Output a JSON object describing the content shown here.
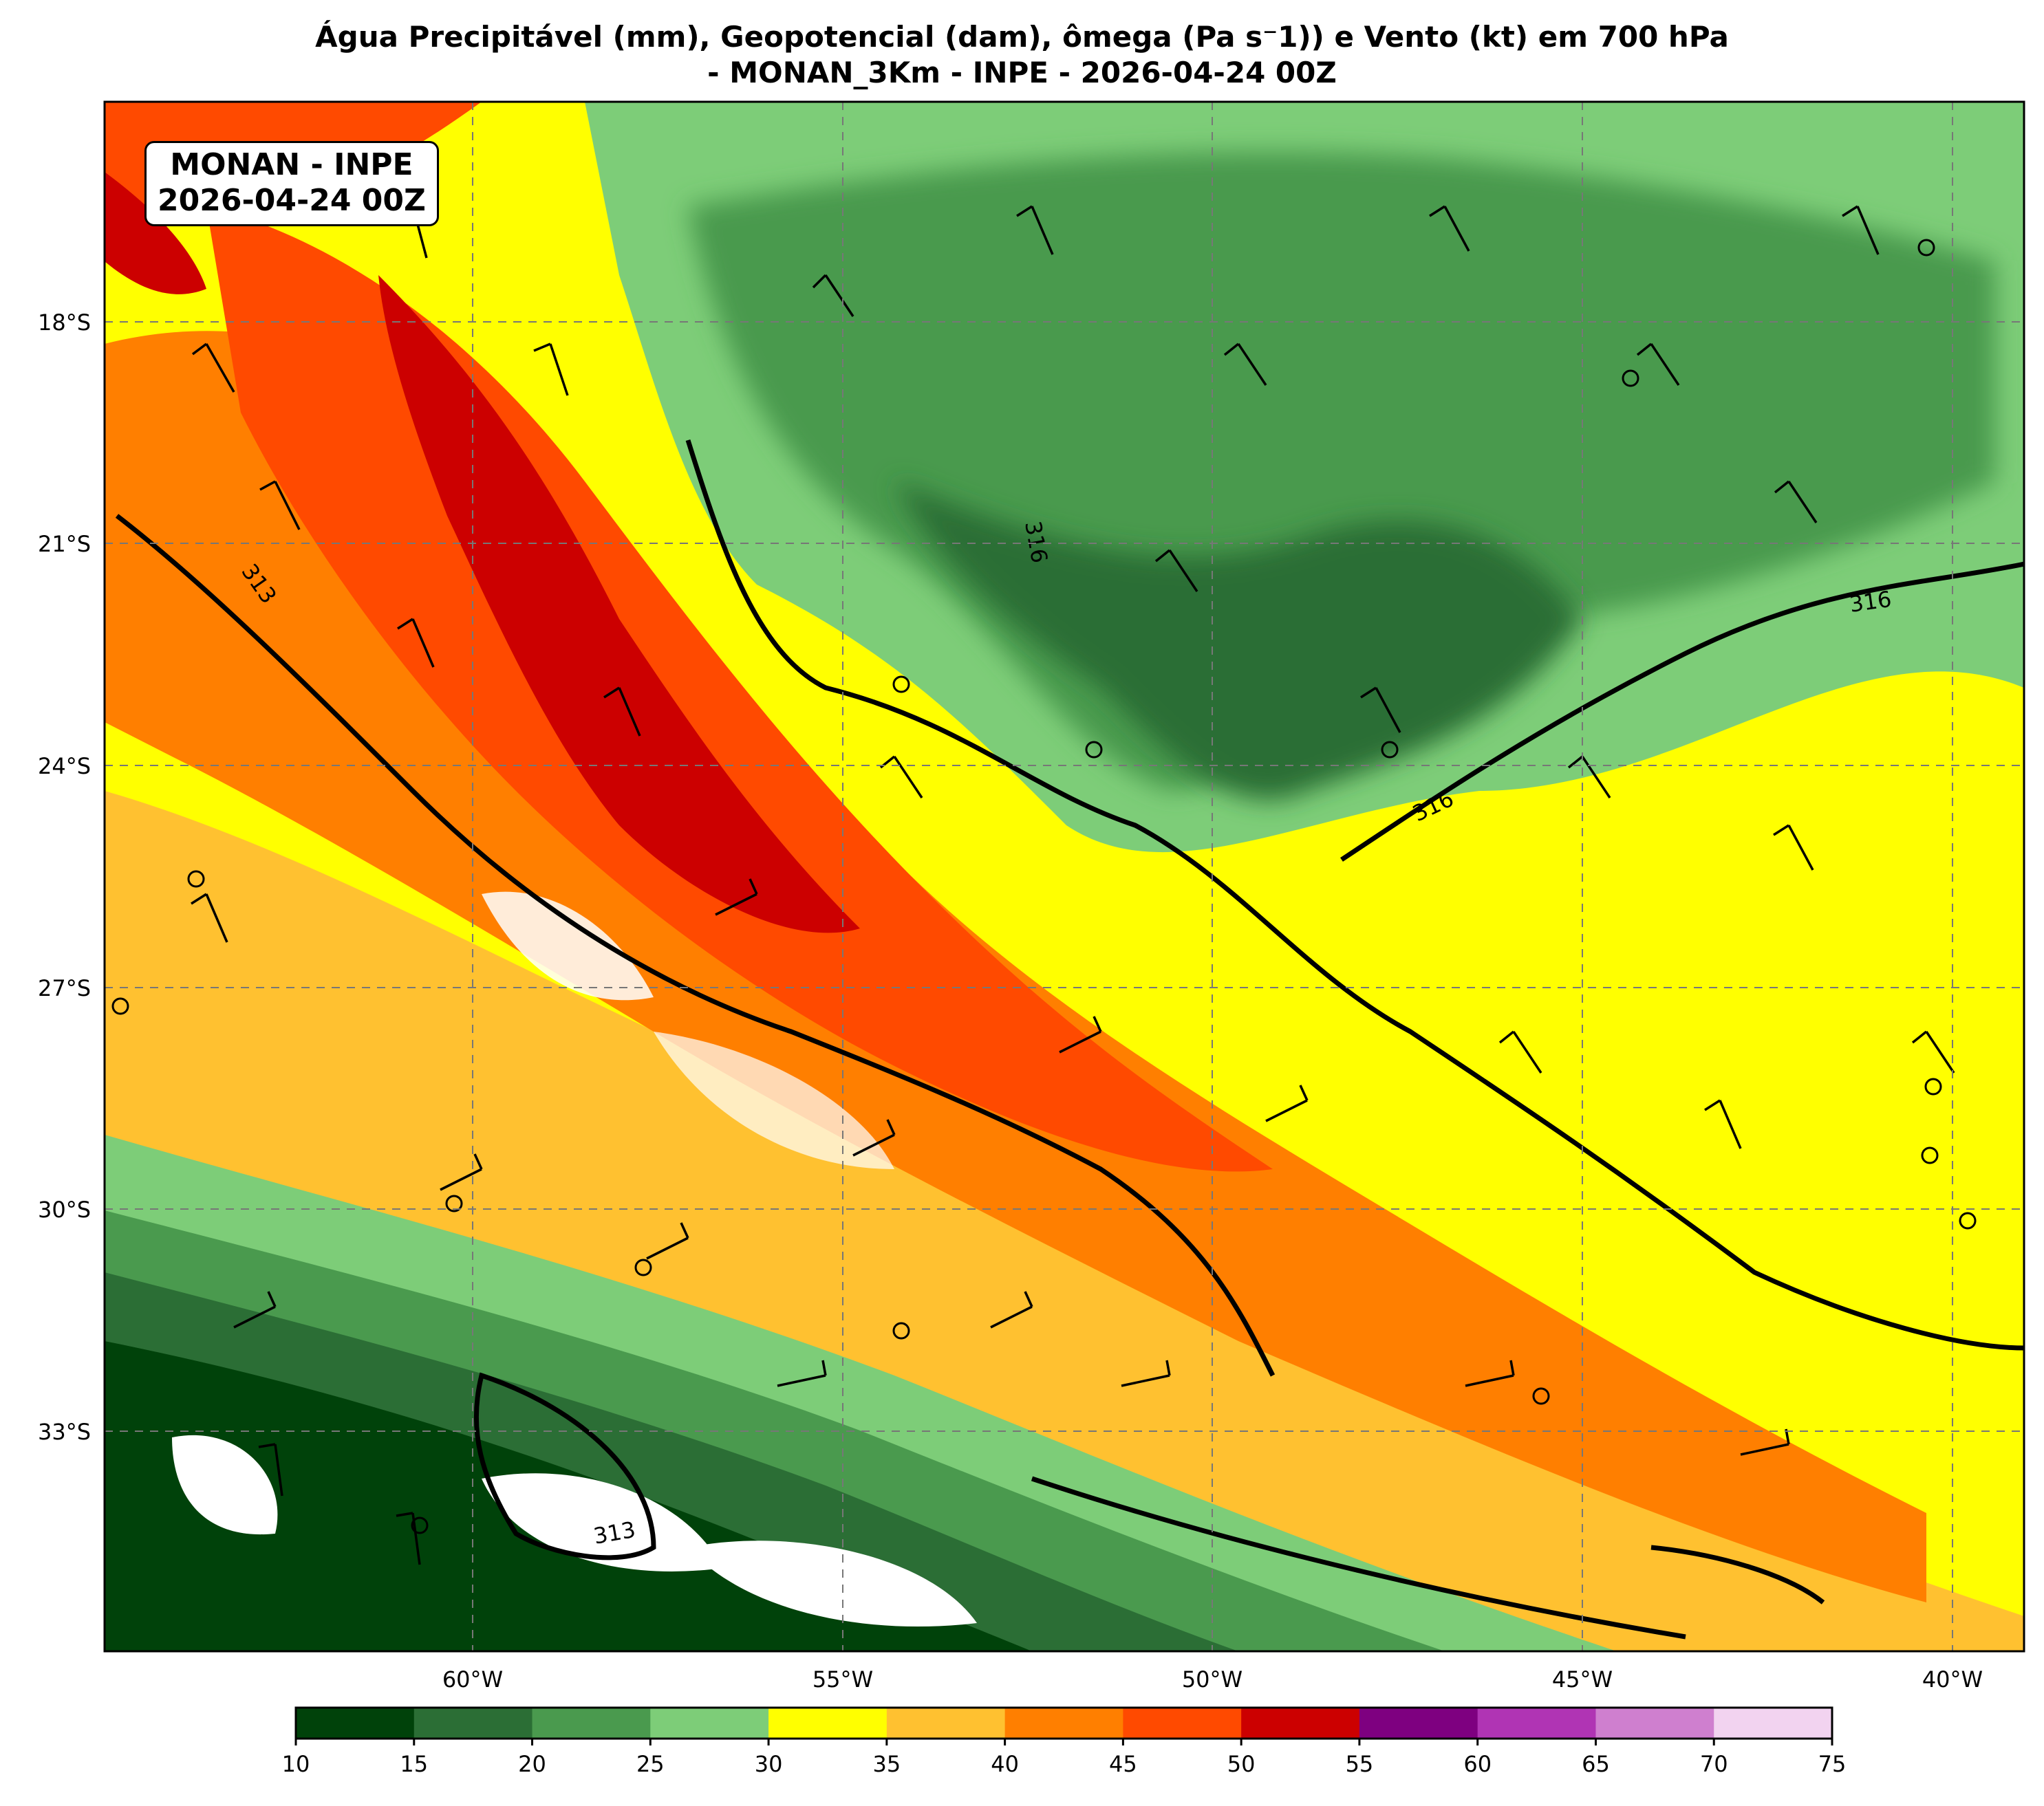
{
  "title": {
    "line1": "Água Precipitável (mm), Geopotencial (dam), ômega (Pa s⁻1)) e Vento (kt) em 700 hPa",
    "line2": "- MONAN_3Km - INPE - 2026-04-24 00Z"
  },
  "stamp": {
    "line1": "MONAN - INPE",
    "line2": "2026-04-24 00Z"
  },
  "lat_labels": [
    "18°S",
    "21°S",
    "24°S",
    "27°S",
    "30°S",
    "33°S"
  ],
  "lon_labels": [
    "60°W",
    "55°W",
    "50°W",
    "45°W",
    "40°W"
  ],
  "contour_labels": [
    "316",
    "313",
    "316",
    "316",
    "313"
  ],
  "colorbar": {
    "ticks": [
      "10",
      "15",
      "20",
      "25",
      "30",
      "35",
      "40",
      "45",
      "50",
      "55",
      "60",
      "65",
      "70",
      "75"
    ],
    "colors": [
      "#00420a",
      "#2b6e35",
      "#4a9a4e",
      "#7dcd78",
      "#ffff00",
      "#ffc130",
      "#ff7f00",
      "#ff4a00",
      "#cc0000",
      "#7e0080",
      "#b034b4",
      "#cf7fcf",
      "#f2d3f0"
    ]
  }
}
